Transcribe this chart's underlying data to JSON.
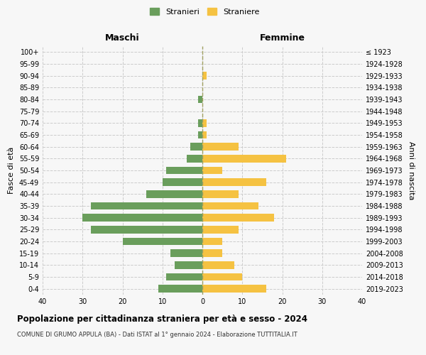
{
  "age_groups": [
    "100+",
    "95-99",
    "90-94",
    "85-89",
    "80-84",
    "75-79",
    "70-74",
    "65-69",
    "60-64",
    "55-59",
    "50-54",
    "45-49",
    "40-44",
    "35-39",
    "30-34",
    "25-29",
    "20-24",
    "15-19",
    "10-14",
    "5-9",
    "0-4"
  ],
  "birth_years": [
    "≤ 1923",
    "1924-1928",
    "1929-1933",
    "1934-1938",
    "1939-1943",
    "1944-1948",
    "1949-1953",
    "1954-1958",
    "1959-1963",
    "1964-1968",
    "1969-1973",
    "1974-1978",
    "1979-1983",
    "1984-1988",
    "1989-1993",
    "1994-1998",
    "1999-2003",
    "2004-2008",
    "2009-2013",
    "2014-2018",
    "2019-2023"
  ],
  "males": [
    0,
    0,
    0,
    0,
    1,
    0,
    1,
    1,
    3,
    4,
    9,
    10,
    14,
    28,
    30,
    28,
    20,
    8,
    7,
    9,
    11
  ],
  "females": [
    0,
    0,
    1,
    0,
    0,
    0,
    1,
    1,
    9,
    21,
    5,
    16,
    9,
    14,
    18,
    9,
    5,
    5,
    8,
    10,
    16
  ],
  "male_color": "#6a9e5c",
  "female_color": "#f5c242",
  "background_color": "#f7f7f7",
  "grid_color": "#cccccc",
  "title": "Popolazione per cittadinanza straniera per età e sesso - 2024",
  "subtitle": "COMUNE DI GRUMO APPULA (BA) - Dati ISTAT al 1° gennaio 2024 - Elaborazione TUTTITALIA.IT",
  "xlabel_left": "Maschi",
  "xlabel_right": "Femmine",
  "ylabel_left": "Fasce di età",
  "ylabel_right": "Anni di nascita",
  "legend_male": "Stranieri",
  "legend_female": "Straniere",
  "xlim": 40,
  "dashed_line_color": "#a0a060"
}
